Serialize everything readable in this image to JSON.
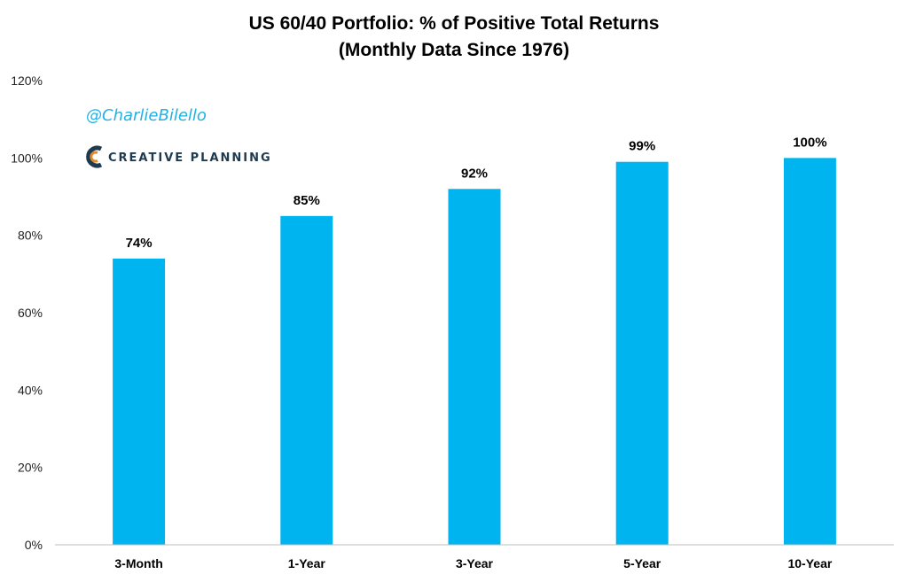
{
  "colors": {
    "bar": "#00b5ef",
    "axis": "#bfbfbf",
    "handle": "#1fb2e6",
    "brand": "#1d3a4f",
    "brand_accent": "#e08a2c"
  },
  "watermark": {
    "handle": "@CharlieBilello",
    "brand_icon": "creative-planning-logo-icon",
    "brand_name": "CREATIVE PLANNING"
  },
  "chart_data": {
    "type": "bar",
    "title": "US 60/40 Portfolio: % of Positive Total Returns",
    "subtitle": "(Monthly Data Since 1976)",
    "categories": [
      "3-Month",
      "1-Year",
      "3-Year",
      "5-Year",
      "10-Year"
    ],
    "values": [
      74,
      85,
      92,
      99,
      100
    ],
    "data_labels": [
      "74%",
      "85%",
      "92%",
      "99%",
      "100%"
    ],
    "ylim": [
      0,
      120
    ],
    "y_ticks": [
      0,
      20,
      40,
      60,
      80,
      100,
      120
    ],
    "y_tick_labels": [
      "0%",
      "20%",
      "40%",
      "60%",
      "80%",
      "100%",
      "120%"
    ],
    "xlabel": "",
    "ylabel": "",
    "grid": false,
    "legend": "none"
  }
}
